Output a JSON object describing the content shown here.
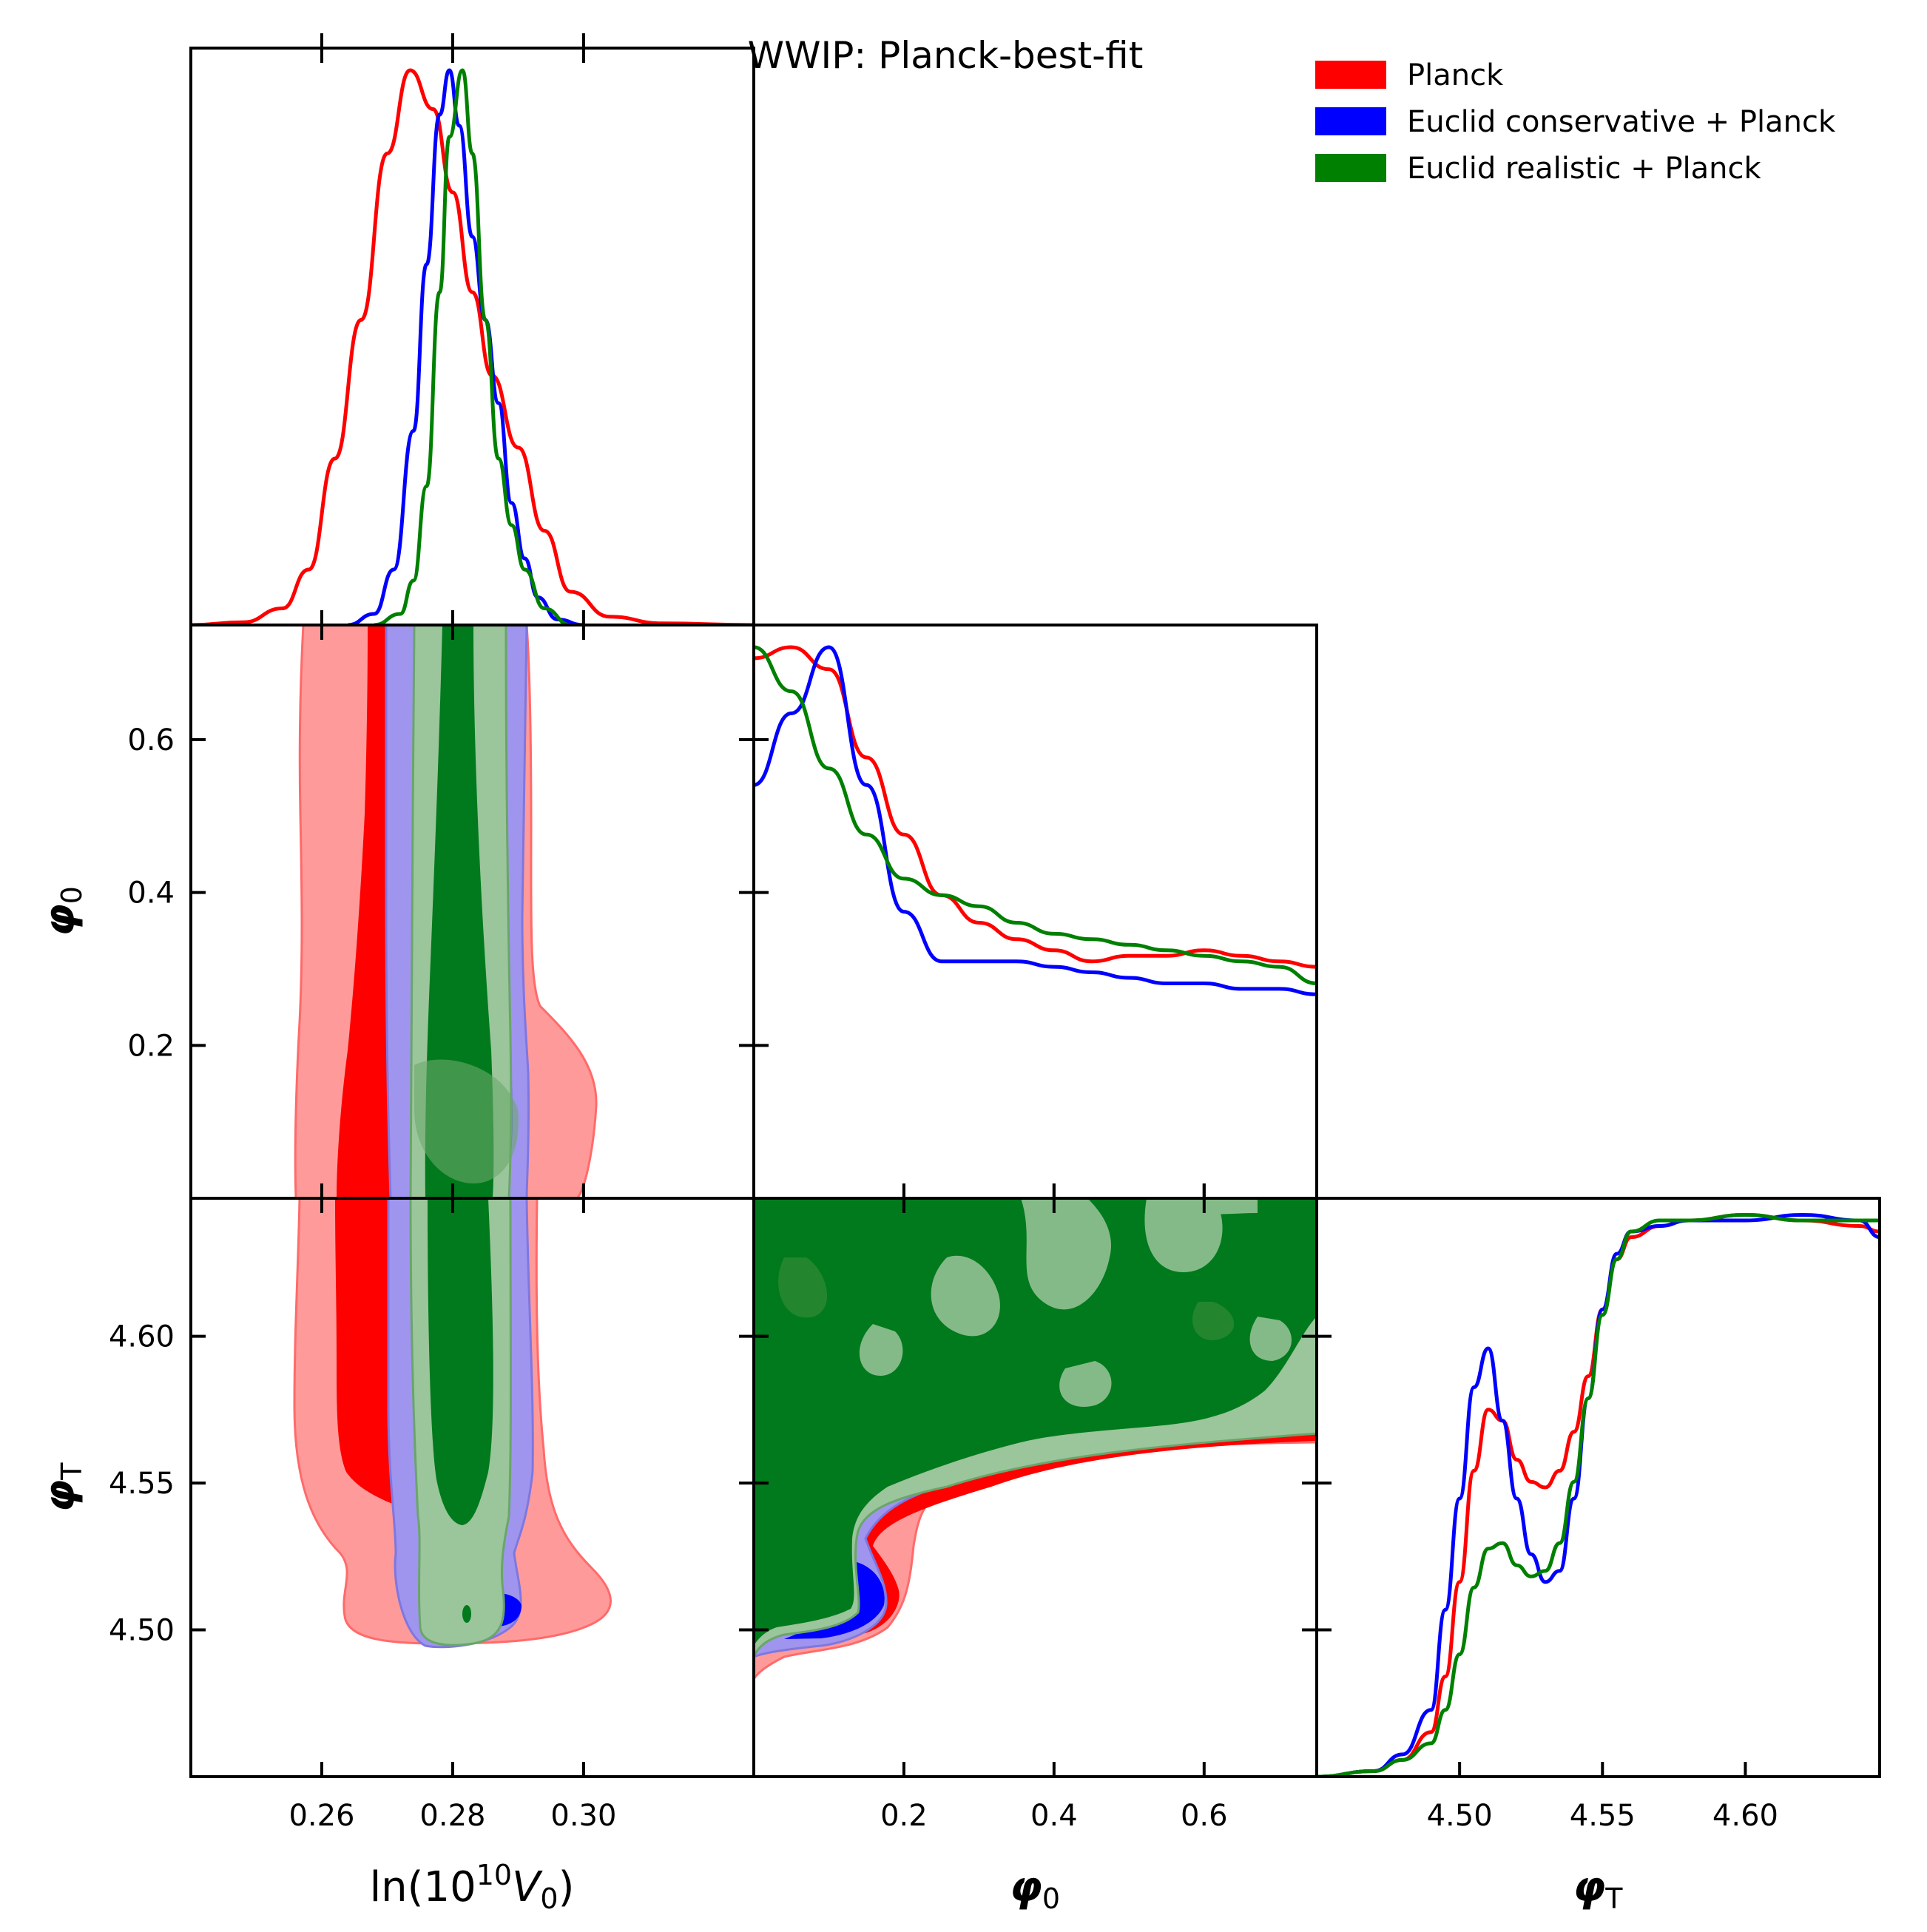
{
  "chart_data": {
    "type": "triangle-corner-plot",
    "title": "WWIP: Planck-best-fit",
    "legend": {
      "placement": "top-right",
      "entries": [
        {
          "name": "Planck",
          "color": "#ff0000"
        },
        {
          "name": "Euclid conservative + Planck",
          "color": "#0000ff"
        },
        {
          "name": "Euclid realistic + Planck",
          "color": "#008000"
        }
      ]
    },
    "params": [
      {
        "key": "lnV0",
        "label_main": "ln(10",
        "label_sup": "10",
        "label_var": "V",
        "label_sub": "0",
        "label_close": ")",
        "range": [
          0.24,
          0.326
        ],
        "ticks": [
          0.26,
          0.28,
          0.3
        ],
        "tick_labels": [
          "0.26",
          "0.28",
          "0.30"
        ]
      },
      {
        "key": "phi0",
        "label_main": "φ",
        "label_sub": "0",
        "range": [
          0.0,
          0.75
        ],
        "ticks": [
          0.2,
          0.4,
          0.6
        ],
        "tick_labels": [
          "0.2",
          "0.4",
          "0.6"
        ]
      },
      {
        "key": "phiT",
        "label_main": "φ",
        "label_sub": "T",
        "range": [
          4.45,
          4.647
        ],
        "ticks": [
          4.5,
          4.55,
          4.6
        ],
        "tick_labels": [
          "4.50",
          "4.55",
          "4.60"
        ]
      }
    ],
    "marginals": {
      "lnV0": {
        "x": [
          0.24,
          0.248,
          0.254,
          0.258,
          0.262,
          0.266,
          0.27,
          0.2735,
          0.277,
          0.28,
          0.283,
          0.286,
          0.29,
          0.294,
          0.298,
          0.304,
          0.312,
          0.326
        ],
        "series": [
          {
            "name": "Planck",
            "y": [
              0.0,
              0.005,
              0.03,
              0.1,
              0.3,
              0.55,
              0.85,
              1.0,
              0.93,
              0.78,
              0.6,
              0.45,
              0.32,
              0.17,
              0.06,
              0.015,
              0.003,
              0.0
            ]
          },
          {
            "name": "Euclid conservative + Planck",
            "x": [
              0.264,
              0.268,
              0.271,
              0.274,
              0.276,
              0.278,
              0.2795,
              0.281,
              0.283,
              0.285,
              0.287,
              0.289,
              0.291,
              0.293,
              0.296,
              0.3
            ],
            "y": [
              0.0,
              0.02,
              0.1,
              0.35,
              0.65,
              0.92,
              1.0,
              0.9,
              0.7,
              0.55,
              0.4,
              0.22,
              0.12,
              0.05,
              0.01,
              0.0
            ]
          },
          {
            "name": "Euclid realistic + Planck",
            "x": [
              0.268,
              0.272,
              0.274,
              0.276,
              0.278,
              0.2795,
              0.2815,
              0.283,
              0.285,
              0.287,
              0.289,
              0.291,
              0.294,
              0.298
            ],
            "y": [
              0.0,
              0.02,
              0.08,
              0.25,
              0.6,
              0.88,
              1.0,
              0.85,
              0.55,
              0.3,
              0.18,
              0.1,
              0.03,
              0.0
            ]
          }
        ]
      },
      "phi0": {
        "x": [
          0.0,
          0.05,
          0.1,
          0.15,
          0.2,
          0.25,
          0.3,
          0.35,
          0.4,
          0.45,
          0.5,
          0.55,
          0.6,
          0.65,
          0.7,
          0.75
        ],
        "series": [
          {
            "name": "Planck",
            "y": [
              0.98,
              1.0,
              0.96,
              0.8,
              0.66,
              0.55,
              0.5,
              0.47,
              0.45,
              0.43,
              0.44,
              0.44,
              0.45,
              0.44,
              0.43,
              0.42
            ]
          },
          {
            "name": "Euclid conservative + Planck",
            "y": [
              0.75,
              0.88,
              1.0,
              0.75,
              0.52,
              0.43,
              0.43,
              0.43,
              0.42,
              0.41,
              0.4,
              0.39,
              0.39,
              0.38,
              0.38,
              0.37
            ]
          },
          {
            "name": "Euclid realistic + Planck",
            "y": [
              1.0,
              0.92,
              0.78,
              0.66,
              0.58,
              0.55,
              0.53,
              0.5,
              0.48,
              0.47,
              0.46,
              0.45,
              0.44,
              0.43,
              0.42,
              0.39
            ]
          }
        ]
      },
      "phiT": {
        "x": [
          4.45,
          4.47,
          4.48,
          4.49,
          4.495,
          4.5,
          4.505,
          4.51,
          4.515,
          4.52,
          4.525,
          4.53,
          4.535,
          4.54,
          4.545,
          4.55,
          4.555,
          4.56,
          4.57,
          4.58,
          4.6,
          4.62,
          4.64,
          4.647
        ],
        "series": [
          {
            "name": "Planck",
            "y": [
              0.0,
              0.01,
              0.03,
              0.08,
              0.18,
              0.35,
              0.55,
              0.66,
              0.64,
              0.57,
              0.53,
              0.52,
              0.55,
              0.62,
              0.72,
              0.84,
              0.93,
              0.97,
              0.99,
              1.0,
              1.01,
              1.0,
              0.99,
              0.98
            ]
          },
          {
            "name": "Euclid conservative + Planck",
            "y": [
              0.0,
              0.01,
              0.04,
              0.12,
              0.3,
              0.5,
              0.7,
              0.77,
              0.64,
              0.5,
              0.4,
              0.35,
              0.37,
              0.5,
              0.68,
              0.84,
              0.94,
              0.98,
              0.99,
              1.0,
              1.0,
              1.01,
              1.0,
              0.97
            ]
          },
          {
            "name": "Euclid realistic + Planck",
            "y": [
              0.0,
              0.01,
              0.03,
              0.06,
              0.12,
              0.22,
              0.34,
              0.41,
              0.42,
              0.38,
              0.36,
              0.37,
              0.42,
              0.53,
              0.68,
              0.83,
              0.93,
              0.98,
              1.0,
              1.0,
              1.01,
              1.0,
              1.0,
              1.0
            ]
          }
        ]
      }
    },
    "colors": {
      "planck_outer": "#ff9a9a",
      "planck_inner": "#ff0000",
      "cons_outer": "#9f95ee",
      "cons_inner": "#0000ff",
      "real_outer": "#9bc59b",
      "real_inner": "#007a1c"
    }
  }
}
